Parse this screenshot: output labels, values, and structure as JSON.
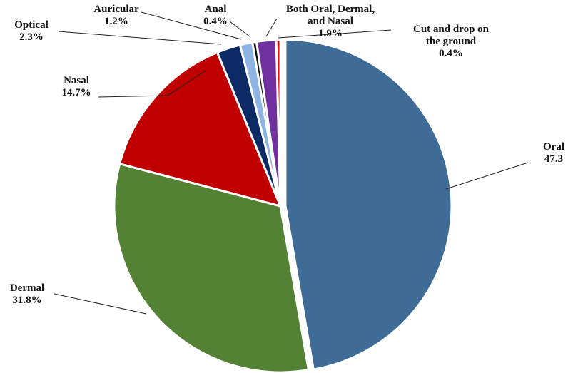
{
  "chart_data": {
    "type": "pie",
    "title": "",
    "slices": [
      {
        "name": "Oral",
        "value": 47.3,
        "label_lines": [
          "Oral",
          "47.3"
        ],
        "color": "#3F6C96",
        "exploded": true
      },
      {
        "name": "Dermal",
        "value": 31.8,
        "label_lines": [
          "Dermal",
          "31.8%"
        ],
        "color": "#548235"
      },
      {
        "name": "Nasal",
        "value": 14.7,
        "label_lines": [
          "Nasal",
          "14.7%"
        ],
        "color": "#C00000"
      },
      {
        "name": "Optical",
        "value": 2.3,
        "label_lines": [
          "Optical",
          "2.3%"
        ],
        "color": "#0C2B64"
      },
      {
        "name": "Auricular",
        "value": 1.2,
        "label_lines": [
          "Auricular",
          "1.2%"
        ],
        "color": "#8EB4E3"
      },
      {
        "name": "Anal",
        "value": 0.4,
        "label_lines": [
          "Anal",
          "0.4%"
        ],
        "color": "#111111"
      },
      {
        "name": "Both Oral, Dermal, and Nasal",
        "value": 1.9,
        "label_lines": [
          "Both Oral, Dermal,",
          "and Nasal",
          "1.9%"
        ],
        "color": "#7030A0"
      },
      {
        "name": "Cut and drop on the ground",
        "value": 0.4,
        "label_lines": [
          "Cut and drop on",
          "the ground",
          "0.4%"
        ],
        "color": "#FF0000"
      }
    ]
  }
}
